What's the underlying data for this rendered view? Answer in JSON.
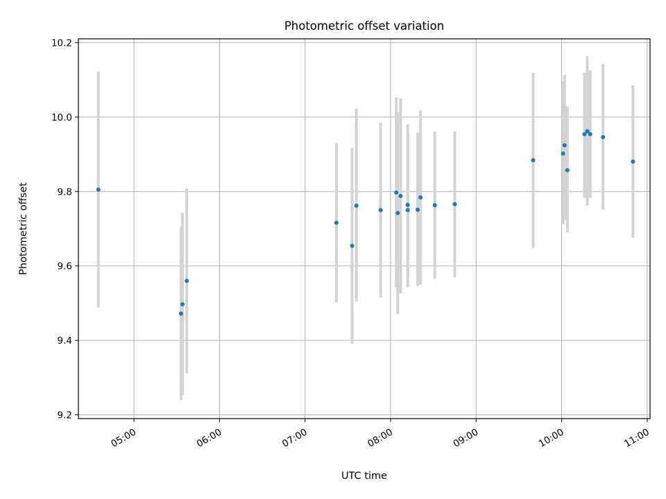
{
  "chart_data": {
    "type": "scatter",
    "title": "Photometric offset variation",
    "xlabel": "UTC time",
    "ylabel": "Photometric offset",
    "x_unit": "time of day (UTC, HH:MM)",
    "xlim": [
      "04:21",
      "11:02"
    ],
    "ylim": [
      9.19,
      10.21
    ],
    "x_ticks": [
      "05:00",
      "06:00",
      "07:00",
      "08:00",
      "09:00",
      "10:00",
      "11:00"
    ],
    "y_ticks": [
      "9.2",
      "9.4",
      "9.6",
      "9.8",
      "10.0",
      "10.2"
    ],
    "grid": true,
    "tick_label_rotation": "30 degrees",
    "colors": {
      "point": "#1f77b4",
      "errorbar": "#d3d3d3",
      "grid": "#b0b0b0",
      "frame": "#000000"
    },
    "points": [
      {
        "x": "04:35",
        "y": 9.805,
        "ylow": 9.488,
        "yhigh": 10.122
      },
      {
        "x": "05:33",
        "y": 9.472,
        "ylow": 9.24,
        "yhigh": 9.705
      },
      {
        "x": "05:34",
        "y": 9.497,
        "ylow": 9.253,
        "yhigh": 9.742
      },
      {
        "x": "05:37",
        "y": 9.56,
        "ylow": 9.312,
        "yhigh": 9.808
      },
      {
        "x": "07:22",
        "y": 9.716,
        "ylow": 9.502,
        "yhigh": 9.93
      },
      {
        "x": "07:33",
        "y": 9.654,
        "ylow": 9.391,
        "yhigh": 9.917
      },
      {
        "x": "07:36",
        "y": 9.762,
        "ylow": 9.504,
        "yhigh": 10.022
      },
      {
        "x": "07:53",
        "y": 9.75,
        "ylow": 9.515,
        "yhigh": 9.985
      },
      {
        "x": "08:04",
        "y": 9.797,
        "ylow": 9.541,
        "yhigh": 10.052
      },
      {
        "x": "08:05",
        "y": 9.742,
        "ylow": 9.471,
        "yhigh": 10.013
      },
      {
        "x": "08:07",
        "y": 9.788,
        "ylow": 9.527,
        "yhigh": 10.05
      },
      {
        "x": "08:12",
        "y": 9.75,
        "ylow": 9.543,
        "yhigh": 9.963
      },
      {
        "x": "08:12",
        "y": 9.764,
        "ylow": 9.567,
        "yhigh": 9.98
      },
      {
        "x": "08:19",
        "y": 9.751,
        "ylow": 9.546,
        "yhigh": 9.958
      },
      {
        "x": "08:21",
        "y": 9.784,
        "ylow": 9.55,
        "yhigh": 10.018
      },
      {
        "x": "08:31",
        "y": 9.763,
        "ylow": 9.565,
        "yhigh": 9.961
      },
      {
        "x": "08:45",
        "y": 9.766,
        "ylow": 9.57,
        "yhigh": 9.961
      },
      {
        "x": "09:40",
        "y": 9.884,
        "ylow": 9.648,
        "yhigh": 10.119
      },
      {
        "x": "10:01",
        "y": 9.902,
        "ylow": 9.712,
        "yhigh": 10.096
      },
      {
        "x": "10:02",
        "y": 9.924,
        "ylow": 9.723,
        "yhigh": 10.113
      },
      {
        "x": "10:04",
        "y": 9.857,
        "ylow": 9.69,
        "yhigh": 10.028
      },
      {
        "x": "10:16",
        "y": 9.954,
        "ylow": 9.783,
        "yhigh": 10.119
      },
      {
        "x": "10:18",
        "y": 9.962,
        "ylow": 9.762,
        "yhigh": 10.163
      },
      {
        "x": "10:20",
        "y": 9.954,
        "ylow": 9.783,
        "yhigh": 10.126
      },
      {
        "x": "10:29",
        "y": 9.946,
        "ylow": 9.752,
        "yhigh": 10.142
      },
      {
        "x": "10:50",
        "y": 9.88,
        "ylow": 9.676,
        "yhigh": 10.085
      }
    ]
  }
}
